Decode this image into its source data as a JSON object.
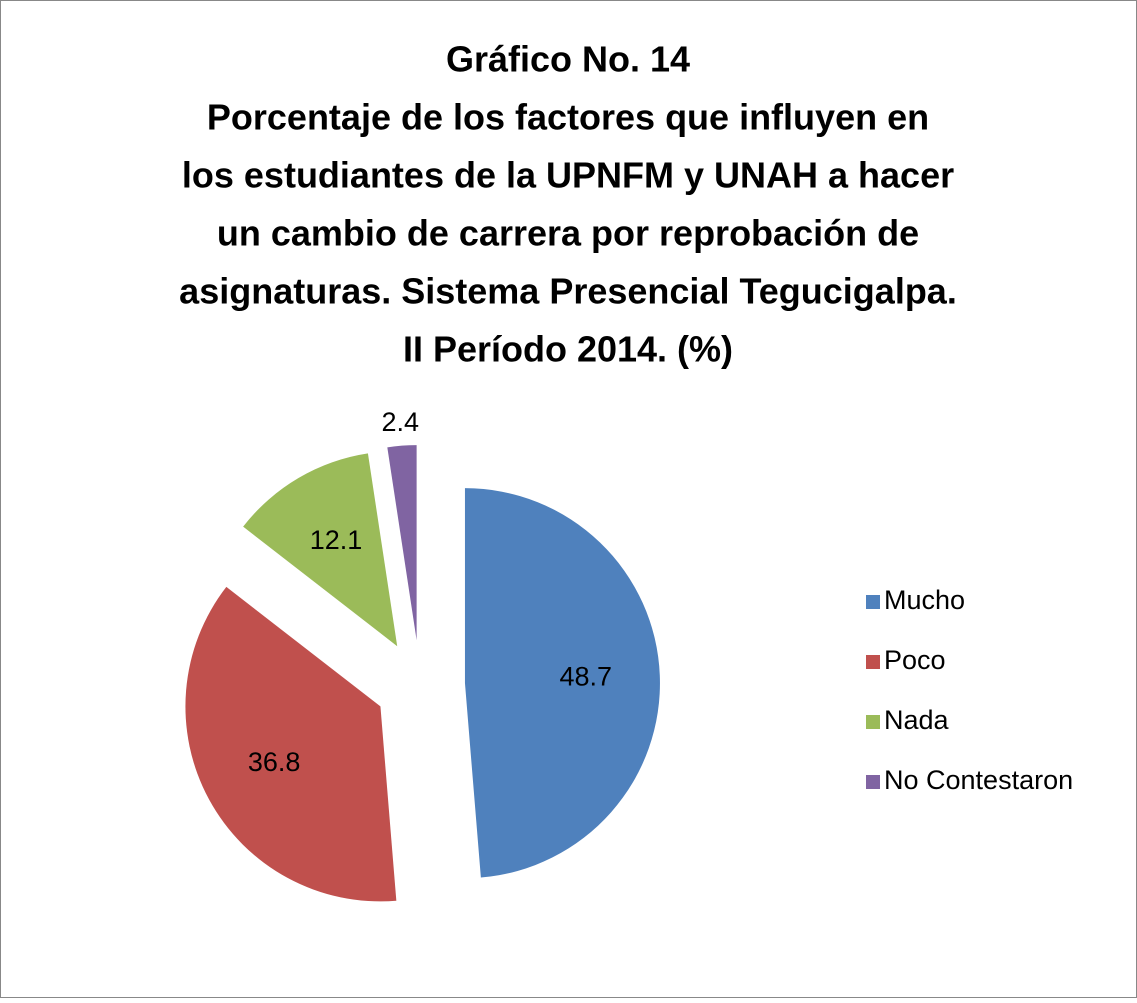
{
  "chart_data": {
    "type": "pie",
    "title": [
      "Gráfico No. 14",
      "Porcentaje de los factores que influyen en",
      "los estudiantes de la UPNFM y UNAH a hacer",
      "un cambio de carrera por reprobación de",
      "asignaturas. Sistema Presencial Tegucigalpa.",
      "II Período 2014. (%)"
    ],
    "categories": [
      "Mucho",
      "Poco",
      "Nada",
      "No Contestaron"
    ],
    "values": [
      48.7,
      36.8,
      12.1,
      2.4
    ],
    "colors": [
      "#4f81bd",
      "#c0504d",
      "#9bbb59",
      "#8064a2"
    ],
    "legend": "right"
  }
}
